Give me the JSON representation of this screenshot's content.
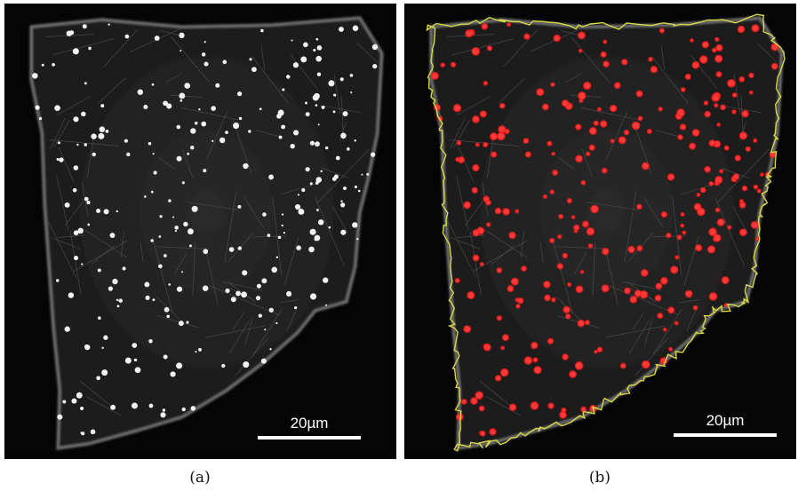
{
  "panels": [
    {
      "scale_bar": "20µm",
      "caption": "(a)"
    },
    {
      "scale_bar": "20µm",
      "caption": "(b)"
    }
  ]
}
